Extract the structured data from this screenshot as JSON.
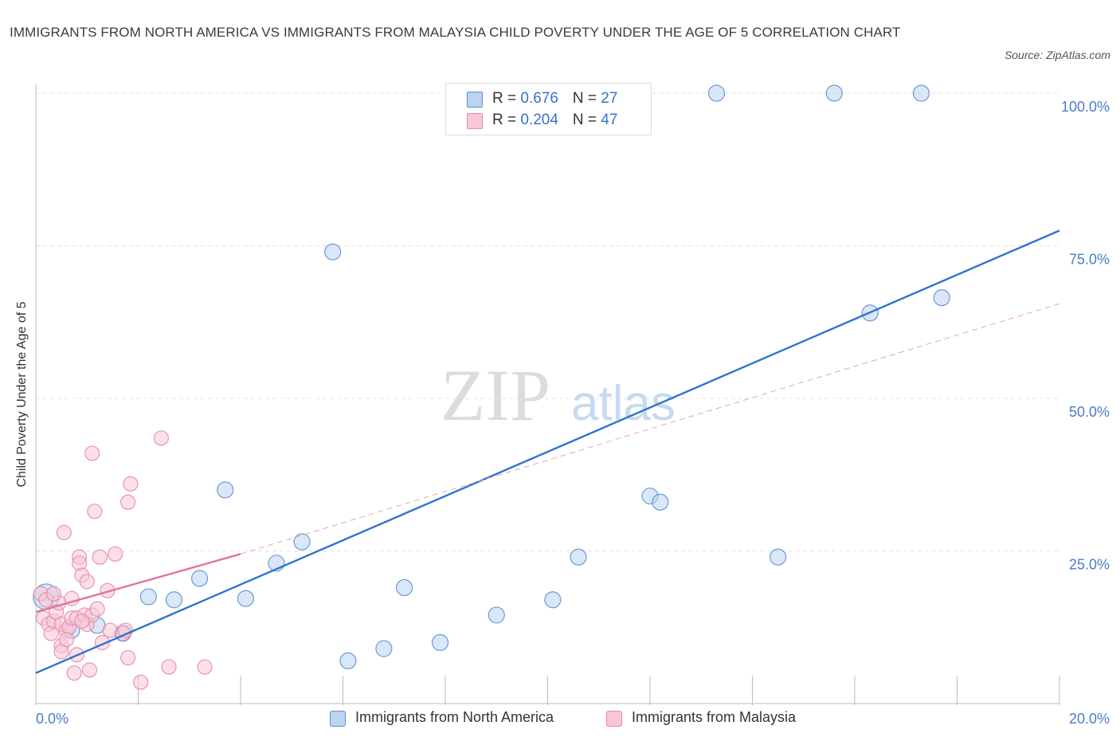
{
  "chart_data": {
    "type": "scatter",
    "title": "IMMIGRANTS FROM NORTH AMERICA VS IMMIGRANTS FROM MALAYSIA CHILD POVERTY UNDER THE AGE OF 5 CORRELATION CHART",
    "source": "Source: ZipAtlas.com",
    "ylabel": "Child Poverty Under the Age of 5",
    "xlabel": "",
    "xlim": [
      0,
      20
    ],
    "ylim": [
      0,
      100
    ],
    "x_tick_labels": [
      "0.0%",
      "20.0%"
    ],
    "y_ticks": [
      25,
      50,
      75,
      100
    ],
    "y_tick_labels": [
      "25.0%",
      "50.0%",
      "75.0%",
      "100.0%"
    ],
    "watermark": {
      "part1": "ZIP",
      "part2": "atlas"
    },
    "legend_stats": [
      {
        "r_label": "R = ",
        "r_value": "0.676",
        "n_label": "N = ",
        "n_value": "27"
      },
      {
        "r_label": "R = ",
        "r_value": "0.204",
        "n_label": "N = ",
        "n_value": "47"
      }
    ],
    "series": [
      {
        "name": "Immigrants from North America",
        "color": "#5b8fd6",
        "fill": "#bcd3f1",
        "trend": {
          "x0": 0,
          "y0": 5,
          "x1": 20,
          "y1": 77.5,
          "style": "solid"
        },
        "points": [
          [
            0.2,
            17.5
          ],
          [
            0.7,
            12
          ],
          [
            1.2,
            12.8
          ],
          [
            1.7,
            11.5
          ],
          [
            2.2,
            17.5
          ],
          [
            2.7,
            17
          ],
          [
            3.2,
            20.5
          ],
          [
            3.7,
            35
          ],
          [
            4.1,
            17.2
          ],
          [
            4.7,
            23
          ],
          [
            5.2,
            26.5
          ],
          [
            5.8,
            74
          ],
          [
            6.1,
            7
          ],
          [
            6.8,
            9
          ],
          [
            7.2,
            19
          ],
          [
            7.9,
            10
          ],
          [
            9.0,
            14.5
          ],
          [
            10.1,
            17
          ],
          [
            10.6,
            24
          ],
          [
            12.0,
            34
          ],
          [
            12.2,
            33
          ],
          [
            13.3,
            100
          ],
          [
            14.5,
            24
          ],
          [
            15.6,
            100
          ],
          [
            16.3,
            64
          ],
          [
            17.3,
            100
          ],
          [
            17.7,
            66.5
          ]
        ],
        "sizes": [
          16,
          10,
          10,
          10,
          10,
          10,
          10,
          10,
          10,
          10,
          10,
          10,
          10,
          10,
          10,
          10,
          10,
          10,
          10,
          10,
          10,
          10,
          10,
          10,
          10,
          10,
          10
        ]
      },
      {
        "name": "Immigrants from Malaysia",
        "color": "#e88aa6",
        "fill": "#f8c6d5",
        "trend": {
          "x0": 0,
          "y0": 15,
          "x1": 4.0,
          "y1": 24.5,
          "style": "solid"
        },
        "trend_ext": {
          "x0": 4.0,
          "y0": 24.5,
          "x1": 20,
          "y1": 65.5,
          "style": "dashed"
        },
        "points": [
          [
            0.1,
            18
          ],
          [
            0.15,
            14
          ],
          [
            0.2,
            17
          ],
          [
            0.25,
            13
          ],
          [
            0.3,
            11.5
          ],
          [
            0.35,
            13.5
          ],
          [
            0.4,
            15
          ],
          [
            0.45,
            16.5
          ],
          [
            0.5,
            9.5
          ],
          [
            0.5,
            8.5
          ],
          [
            0.5,
            13
          ],
          [
            0.55,
            28
          ],
          [
            0.6,
            12
          ],
          [
            0.65,
            12.5
          ],
          [
            0.7,
            14
          ],
          [
            0.7,
            17.2
          ],
          [
            0.75,
            5
          ],
          [
            0.8,
            8
          ],
          [
            0.8,
            14
          ],
          [
            0.85,
            24
          ],
          [
            0.85,
            23
          ],
          [
            0.9,
            21
          ],
          [
            0.95,
            14.5
          ],
          [
            1.0,
            13
          ],
          [
            1.0,
            20
          ],
          [
            1.05,
            5.5
          ],
          [
            1.1,
            14.5
          ],
          [
            1.1,
            41
          ],
          [
            1.15,
            31.5
          ],
          [
            1.2,
            15.5
          ],
          [
            1.25,
            24
          ],
          [
            1.3,
            10
          ],
          [
            1.4,
            18.5
          ],
          [
            1.45,
            12
          ],
          [
            1.55,
            24.5
          ],
          [
            1.7,
            11.5
          ],
          [
            1.75,
            12
          ],
          [
            1.8,
            33
          ],
          [
            1.8,
            7.5
          ],
          [
            1.85,
            36
          ],
          [
            2.05,
            3.5
          ],
          [
            2.45,
            43.5
          ],
          [
            2.6,
            6
          ],
          [
            3.3,
            6
          ],
          [
            0.35,
            18
          ],
          [
            0.6,
            10.5
          ],
          [
            0.9,
            13.5
          ]
        ]
      }
    ]
  }
}
